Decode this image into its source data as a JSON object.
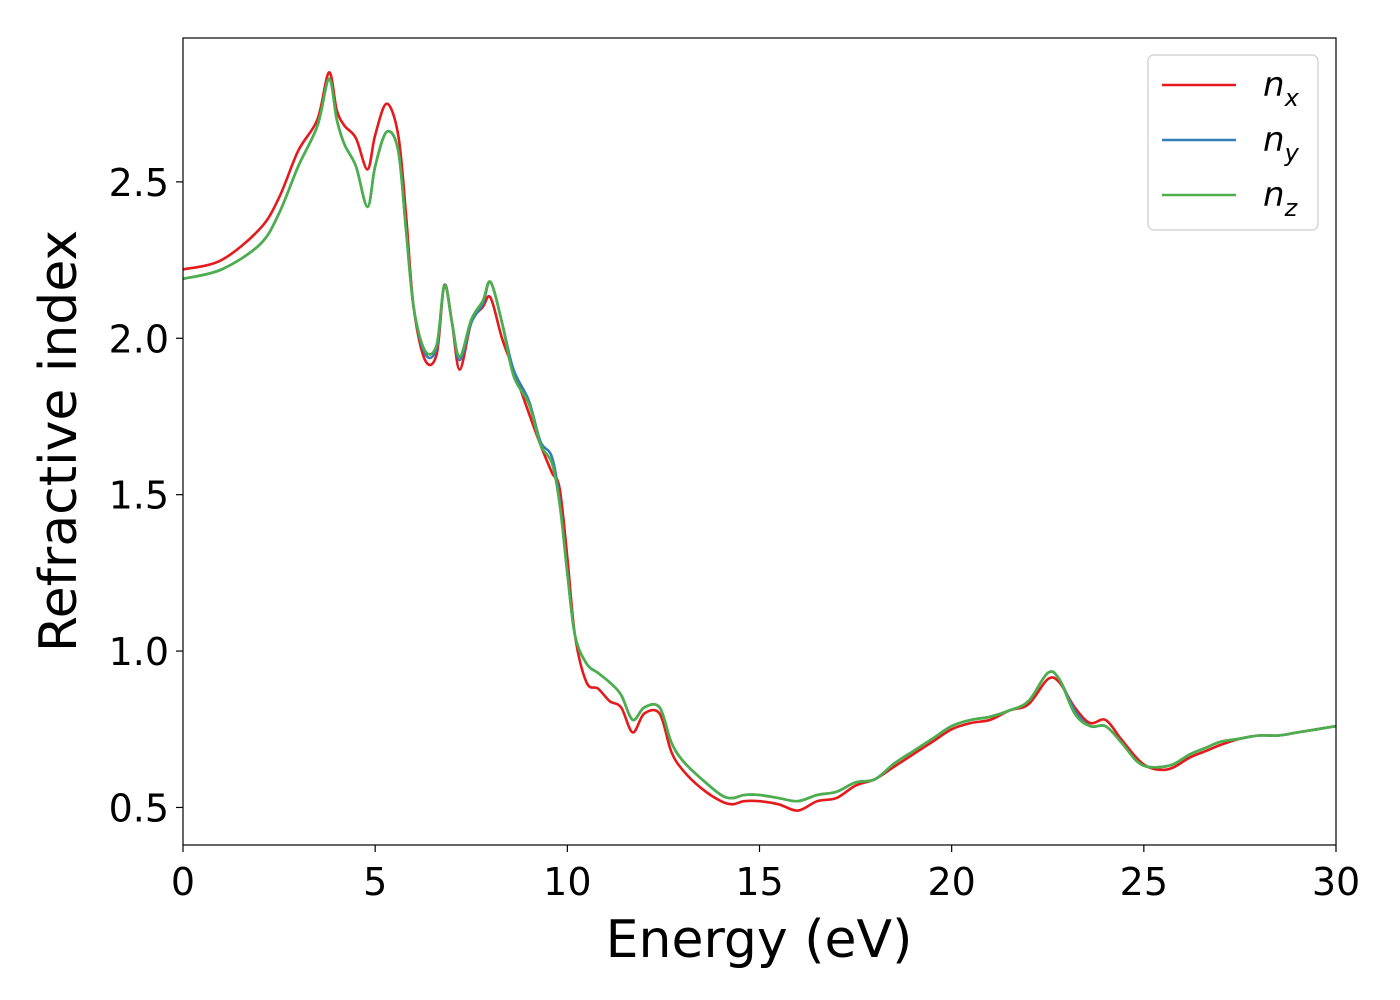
{
  "chart_data": {
    "type": "line",
    "title": "",
    "xlabel": "Energy (eV)",
    "ylabel": "Refractive index",
    "xlim": [
      0,
      30
    ],
    "ylim": [
      0.38,
      2.96
    ],
    "xticks": [
      0,
      5,
      10,
      15,
      20,
      25,
      30
    ],
    "xtick_labels": [
      "0",
      "5",
      "10",
      "15",
      "20",
      "25",
      "30"
    ],
    "yticks": [
      0.5,
      1.0,
      1.5,
      2.0,
      2.5
    ],
    "ytick_labels": [
      "0.5",
      "1.0",
      "1.5",
      "2.0",
      "2.5"
    ],
    "grid": false,
    "legend_position": "top-right",
    "colors": {
      "n_x": "#e41a1c",
      "n_y": "#377eb8",
      "n_z": "#4daf4a"
    },
    "legend": [
      {
        "base": "n",
        "sub": "x"
      },
      {
        "base": "n",
        "sub": "y"
      },
      {
        "base": "n",
        "sub": "z"
      }
    ],
    "series": [
      {
        "key": "n_x",
        "x": [
          0,
          1,
          2,
          2.5,
          3,
          3.5,
          3.8,
          4.0,
          4.2,
          4.5,
          4.8,
          5.0,
          5.3,
          5.6,
          5.8,
          6.0,
          6.3,
          6.6,
          6.8,
          7.0,
          7.2,
          7.5,
          7.8,
          8.0,
          8.3,
          8.6,
          9.0,
          9.3,
          9.6,
          9.8,
          10.0,
          10.2,
          10.5,
          10.8,
          11.1,
          11.4,
          11.7,
          12.0,
          12.4,
          12.7,
          13.0,
          13.5,
          14.0,
          14.3,
          14.6,
          15.0,
          15.5,
          16.0,
          16.5,
          17.0,
          17.5,
          18.0,
          18.5,
          19.0,
          19.5,
          20.0,
          20.5,
          21.0,
          21.5,
          22.0,
          22.5,
          22.8,
          23.2,
          23.6,
          24.0,
          24.4,
          24.8,
          25.1,
          25.5,
          25.8,
          26.2,
          26.6,
          27.0,
          27.5,
          28.0,
          28.5,
          29.0,
          29.5,
          30.0
        ],
        "y": [
          2.22,
          2.25,
          2.35,
          2.45,
          2.6,
          2.7,
          2.85,
          2.73,
          2.68,
          2.64,
          2.54,
          2.65,
          2.75,
          2.65,
          2.4,
          2.1,
          1.93,
          1.95,
          2.17,
          2.05,
          1.9,
          2.05,
          2.1,
          2.13,
          2.0,
          1.9,
          1.76,
          1.66,
          1.57,
          1.52,
          1.3,
          1.05,
          0.9,
          0.88,
          0.84,
          0.82,
          0.74,
          0.8,
          0.8,
          0.68,
          0.62,
          0.56,
          0.52,
          0.51,
          0.52,
          0.52,
          0.51,
          0.49,
          0.52,
          0.53,
          0.57,
          0.59,
          0.63,
          0.67,
          0.71,
          0.75,
          0.77,
          0.78,
          0.81,
          0.83,
          0.91,
          0.9,
          0.82,
          0.77,
          0.78,
          0.72,
          0.66,
          0.63,
          0.62,
          0.63,
          0.66,
          0.68,
          0.7,
          0.72,
          0.73,
          0.73,
          0.74,
          0.75,
          0.76
        ]
      },
      {
        "key": "n_y",
        "x": [
          0,
          1,
          2,
          2.5,
          3,
          3.5,
          3.8,
          4.0,
          4.2,
          4.5,
          4.8,
          5.0,
          5.3,
          5.6,
          5.8,
          6.0,
          6.3,
          6.6,
          6.8,
          7.0,
          7.2,
          7.5,
          7.8,
          8.0,
          8.3,
          8.6,
          9.0,
          9.3,
          9.6,
          9.8,
          10.0,
          10.2,
          10.5,
          10.8,
          11.1,
          11.4,
          11.7,
          12.0,
          12.4,
          12.7,
          13.0,
          13.5,
          14.0,
          14.3,
          14.6,
          15.0,
          15.5,
          16.0,
          16.5,
          17.0,
          17.5,
          18.0,
          18.5,
          19.0,
          19.5,
          20.0,
          20.5,
          21.0,
          21.5,
          22.0,
          22.5,
          22.8,
          23.2,
          23.6,
          24.0,
          24.4,
          24.8,
          25.1,
          25.5,
          25.8,
          26.2,
          26.6,
          27.0,
          27.5,
          28.0,
          28.5,
          29.0,
          29.5,
          30.0
        ],
        "y": [
          2.19,
          2.22,
          2.3,
          2.4,
          2.55,
          2.68,
          2.83,
          2.7,
          2.62,
          2.55,
          2.42,
          2.55,
          2.66,
          2.6,
          2.35,
          2.1,
          1.95,
          1.97,
          2.17,
          2.05,
          1.93,
          2.05,
          2.11,
          2.18,
          2.05,
          1.9,
          1.8,
          1.67,
          1.62,
          1.48,
          1.25,
          1.05,
          0.96,
          0.93,
          0.9,
          0.86,
          0.78,
          0.82,
          0.82,
          0.71,
          0.65,
          0.59,
          0.54,
          0.53,
          0.54,
          0.54,
          0.53,
          0.52,
          0.54,
          0.55,
          0.58,
          0.59,
          0.64,
          0.68,
          0.72,
          0.76,
          0.78,
          0.79,
          0.81,
          0.84,
          0.93,
          0.91,
          0.81,
          0.76,
          0.76,
          0.71,
          0.65,
          0.63,
          0.63,
          0.64,
          0.67,
          0.69,
          0.71,
          0.72,
          0.73,
          0.73,
          0.74,
          0.75,
          0.76
        ]
      },
      {
        "key": "n_z",
        "x": [
          0,
          1,
          2,
          2.5,
          3,
          3.5,
          3.8,
          4.0,
          4.2,
          4.5,
          4.8,
          5.0,
          5.3,
          5.6,
          5.8,
          6.0,
          6.3,
          6.6,
          6.8,
          7.0,
          7.2,
          7.5,
          7.8,
          8.0,
          8.3,
          8.6,
          9.0,
          9.3,
          9.6,
          9.8,
          10.0,
          10.2,
          10.5,
          10.8,
          11.1,
          11.4,
          11.7,
          12.0,
          12.4,
          12.7,
          13.0,
          13.5,
          14.0,
          14.3,
          14.6,
          15.0,
          15.5,
          16.0,
          16.5,
          17.0,
          17.5,
          18.0,
          18.5,
          19.0,
          19.5,
          20.0,
          20.5,
          21.0,
          21.5,
          22.0,
          22.5,
          22.8,
          23.2,
          23.6,
          24.0,
          24.4,
          24.8,
          25.1,
          25.5,
          25.8,
          26.2,
          26.6,
          27.0,
          27.5,
          28.0,
          28.5,
          29.0,
          29.5,
          30.0
        ],
        "y": [
          2.19,
          2.22,
          2.3,
          2.4,
          2.55,
          2.68,
          2.83,
          2.7,
          2.62,
          2.55,
          2.42,
          2.55,
          2.66,
          2.6,
          2.35,
          2.1,
          1.96,
          1.98,
          2.17,
          2.05,
          1.94,
          2.06,
          2.12,
          2.18,
          2.05,
          1.88,
          1.79,
          1.66,
          1.6,
          1.47,
          1.25,
          1.05,
          0.96,
          0.93,
          0.9,
          0.86,
          0.78,
          0.82,
          0.82,
          0.71,
          0.65,
          0.59,
          0.54,
          0.53,
          0.54,
          0.54,
          0.53,
          0.52,
          0.54,
          0.55,
          0.58,
          0.59,
          0.64,
          0.68,
          0.72,
          0.76,
          0.78,
          0.79,
          0.81,
          0.84,
          0.93,
          0.91,
          0.8,
          0.76,
          0.76,
          0.71,
          0.65,
          0.63,
          0.63,
          0.64,
          0.67,
          0.69,
          0.71,
          0.72,
          0.73,
          0.73,
          0.74,
          0.75,
          0.76
        ]
      }
    ]
  }
}
